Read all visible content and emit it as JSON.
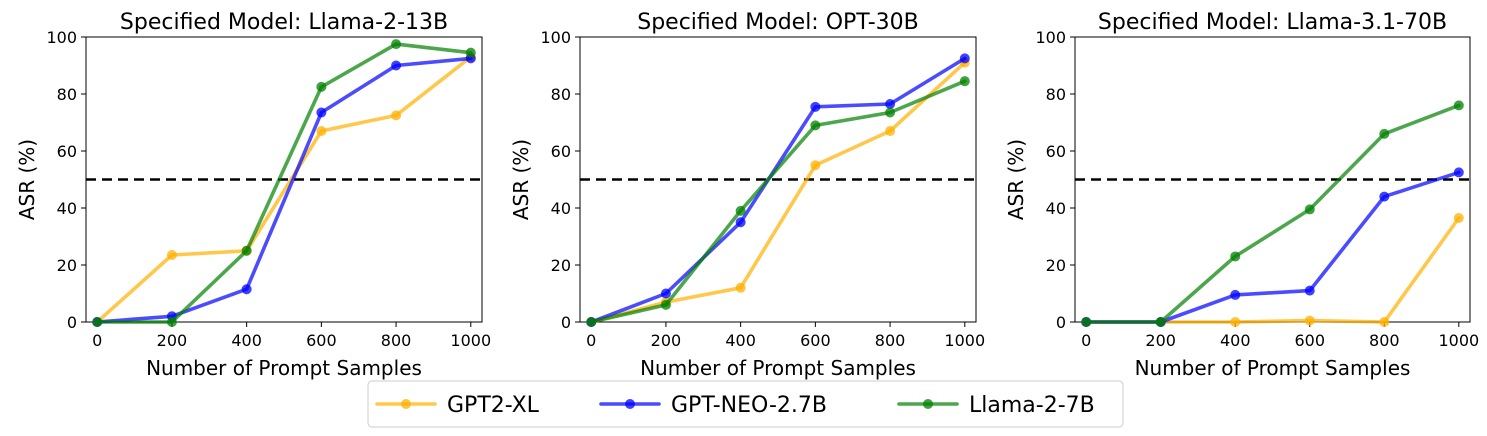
{
  "chart_data": [
    {
      "type": "line",
      "title": "Specified Model: Llama-2-13B",
      "xlabel": "Number of Prompt Samples",
      "ylabel": "ASR (%)",
      "xlim": [
        -30,
        1030
      ],
      "ylim": [
        0,
        100
      ],
      "xticks": [
        0,
        200,
        400,
        600,
        800,
        1000
      ],
      "yticks": [
        0,
        20,
        40,
        60,
        80,
        100
      ],
      "x": [
        0,
        200,
        400,
        600,
        800,
        1000
      ],
      "threshold": 50,
      "series": [
        {
          "name": "GPT2-XL",
          "values": [
            0,
            23.5,
            25,
            67,
            72.5,
            93
          ]
        },
        {
          "name": "GPT-NEO-2.7B",
          "values": [
            0,
            2,
            11.5,
            73.5,
            90,
            92.5
          ]
        },
        {
          "name": "Llama-2-7B",
          "values": [
            0,
            0,
            25,
            82.5,
            97.5,
            94.5
          ]
        }
      ]
    },
    {
      "type": "line",
      "title": "Specified Model: OPT-30B",
      "xlabel": "Number of Prompt Samples",
      "ylabel": "ASR (%)",
      "xlim": [
        -30,
        1030
      ],
      "ylim": [
        0,
        100
      ],
      "xticks": [
        0,
        200,
        400,
        600,
        800,
        1000
      ],
      "yticks": [
        0,
        20,
        40,
        60,
        80,
        100
      ],
      "x": [
        0,
        200,
        400,
        600,
        800,
        1000
      ],
      "threshold": 50,
      "series": [
        {
          "name": "GPT2-XL",
          "values": [
            0,
            7,
            12,
            55,
            67,
            91
          ]
        },
        {
          "name": "GPT-NEO-2.7B",
          "values": [
            0,
            10,
            35,
            75.5,
            76.5,
            92.5
          ]
        },
        {
          "name": "Llama-2-7B",
          "values": [
            0,
            6,
            39,
            69,
            73.5,
            84.5
          ]
        }
      ]
    },
    {
      "type": "line",
      "title": "Specified Model: Llama-3.1-70B",
      "xlabel": "Number of Prompt Samples",
      "ylabel": "ASR (%)",
      "xlim": [
        -30,
        1030
      ],
      "ylim": [
        0,
        100
      ],
      "xticks": [
        0,
        200,
        400,
        600,
        800,
        1000
      ],
      "yticks": [
        0,
        20,
        40,
        60,
        80,
        100
      ],
      "x": [
        0,
        200,
        400,
        600,
        800,
        1000
      ],
      "threshold": 50,
      "series": [
        {
          "name": "GPT2-XL",
          "values": [
            0,
            0,
            0,
            0.5,
            0,
            36.5
          ]
        },
        {
          "name": "GPT-NEO-2.7B",
          "values": [
            0,
            0,
            9.5,
            11,
            44,
            52.5
          ]
        },
        {
          "name": "Llama-2-7B",
          "values": [
            0,
            0,
            23,
            39.5,
            66,
            76
          ]
        }
      ]
    }
  ],
  "legend": {
    "location": "bottom-center",
    "entries": [
      {
        "name": "GPT2-XL",
        "color": "#FFB000"
      },
      {
        "name": "GPT-NEO-2.7B",
        "color": "#0000FF"
      },
      {
        "name": "Llama-2-7B",
        "color": "#008000"
      }
    ]
  },
  "colors": {
    "GPT2-XL": "#FFB000",
    "GPT-NEO-2.7B": "#0000FF",
    "Llama-2-7B": "#008000",
    "threshold": "#000000"
  }
}
